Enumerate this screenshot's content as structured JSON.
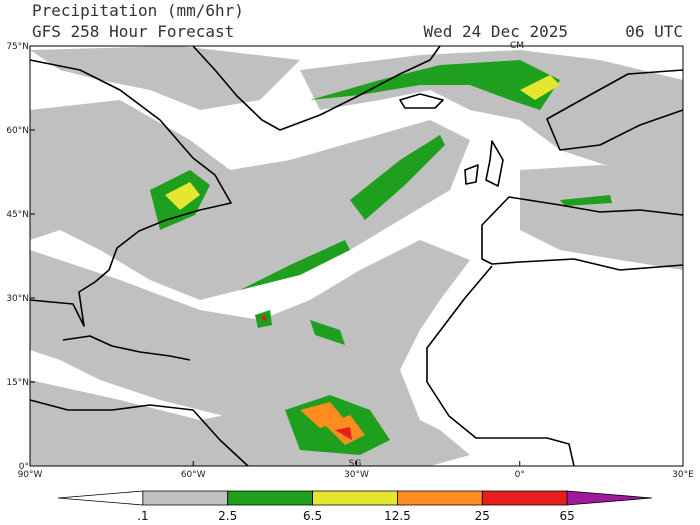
{
  "header": {
    "title": "Precipitation (mm/6hr)",
    "subtitle": "GFS 258 Hour Forecast",
    "date": "Wed 24 Dec 2025",
    "time": "06 UTC"
  },
  "axes": {
    "lat_labels": [
      "75°N",
      "60°N",
      "45°N",
      "30°N",
      "15°N",
      "0°"
    ],
    "lon_labels": [
      "90°W",
      "60°W",
      "30°W",
      "0°",
      "30°E"
    ]
  },
  "map": {
    "marks": [
      "CM",
      "SG"
    ]
  },
  "legend": {
    "labels": [
      ".1",
      "2.5",
      "6.5",
      "12.5",
      "25",
      "65"
    ],
    "colors": [
      "#ffffff",
      "#c0c0c0",
      "#1ea01e",
      "#e6e632",
      "#ff8c1e",
      "#e61e1e",
      "#a0189c"
    ]
  }
}
